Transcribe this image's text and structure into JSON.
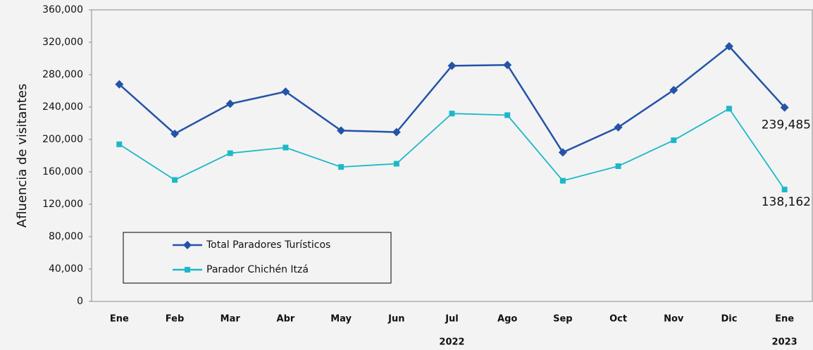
{
  "chart_data": {
    "type": "line",
    "y_label": "Afluencia de visitantes",
    "categories": [
      "Ene",
      "Feb",
      "Mar",
      "Abr",
      "May",
      "Jun",
      "Jul",
      "Ago",
      "Sep",
      "Oct",
      "Nov",
      "Dic",
      "Ene"
    ],
    "x_groups": [
      {
        "label": "2022",
        "span": [
          0,
          11
        ]
      },
      {
        "label": "2023",
        "span": [
          12,
          12
        ]
      }
    ],
    "series": [
      {
        "name": "Total Paradores Turísticos",
        "color": "#2453a8",
        "marker": "diamond",
        "values": [
          268000,
          207000,
          244000,
          259000,
          211000,
          209000,
          291000,
          292000,
          184000,
          215000,
          261000,
          315000,
          239485
        ],
        "value_labels": [
          null,
          null,
          null,
          null,
          null,
          null,
          null,
          null,
          null,
          null,
          null,
          null,
          "239,485"
        ]
      },
      {
        "name": "Parador Chichén Itzá",
        "color": "#1cb8c8",
        "marker": "square",
        "values": [
          194000,
          150000,
          183000,
          190000,
          166000,
          170000,
          232000,
          230000,
          149000,
          167000,
          199000,
          238000,
          138162
        ],
        "value_labels": [
          null,
          null,
          null,
          null,
          null,
          null,
          null,
          null,
          null,
          null,
          null,
          null,
          "138,162"
        ]
      }
    ],
    "ylim": [
      0,
      360000
    ],
    "yticks": [
      0,
      {
        "value": 40000,
        "label": "40,000"
      },
      {
        "value": 80000,
        "label": "80,000"
      },
      {
        "value": 120000,
        "label": "120,000"
      },
      {
        "value": 160000,
        "label": "160,000"
      },
      {
        "value": 200000,
        "label": "200,000"
      },
      {
        "value": 240000,
        "label": "240,000"
      },
      {
        "value": 280000,
        "label": "280,000"
      },
      {
        "value": 320000,
        "label": "320,000"
      },
      {
        "value": 360000,
        "label": "360,000"
      }
    ],
    "grid": false,
    "legend": "lower left"
  }
}
